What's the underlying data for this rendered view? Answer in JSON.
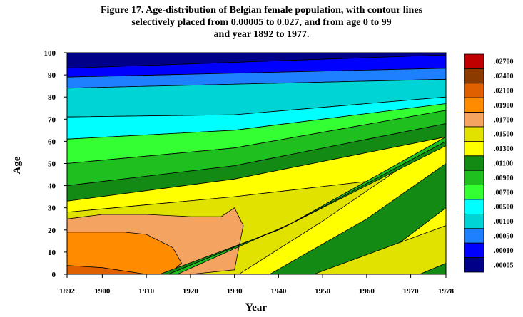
{
  "title_lines": [
    "Figure 17. Age-distribution of Belgian female population, with contour lines",
    "selectively placed from 0.00005 to 0.027, and from age 0 to 99",
    "and year 1892 to 1977."
  ],
  "chart_data": {
    "type": "heatmap",
    "xlabel": "Year",
    "ylabel": "Age",
    "xlim": [
      1892,
      1978
    ],
    "ylim": [
      0,
      100
    ],
    "x_ticks": [
      1892,
      1900,
      1910,
      1920,
      1930,
      1940,
      1950,
      1960,
      1970,
      1978
    ],
    "y_ticks": [
      0,
      10,
      20,
      30,
      40,
      50,
      60,
      70,
      80,
      90,
      100
    ],
    "legend": [
      {
        "label": ".02700",
        "color": "#c00000"
      },
      {
        "label": ".02400",
        "color": "#8b3a00"
      },
      {
        "label": ".02100",
        "color": "#e06000"
      },
      {
        "label": ".01900",
        "color": "#ff8c00"
      },
      {
        "label": ".01700",
        "color": "#f4a460"
      },
      {
        "label": ".01500",
        "color": "#e2e200"
      },
      {
        "label": ".01300",
        "color": "#ffff00"
      },
      {
        "label": ".01100",
        "color": "#138a13"
      },
      {
        "label": ".00900",
        "color": "#1fbf1f"
      },
      {
        "label": ".00700",
        "color": "#33ff33"
      },
      {
        "label": ".00500",
        "color": "#00ffff"
      },
      {
        "label": ".00100",
        "color": "#00d4d4"
      },
      {
        "label": ".00050",
        "color": "#1e7fff"
      },
      {
        "label": ".00010",
        "color": "#0000ff"
      },
      {
        "label": ".00005",
        "color": "#000088"
      }
    ],
    "bands": [
      {
        "level": ".00005",
        "color": "#000088",
        "from": [
          [
            1892,
            93
          ],
          [
            1978,
            99
          ]
        ],
        "to": [
          [
            1892,
            100
          ],
          [
            1978,
            100
          ]
        ]
      },
      {
        "level": ".00010",
        "color": "#0000ff",
        "from": [
          [
            1892,
            89
          ],
          [
            1978,
            93
          ]
        ],
        "to": [
          [
            1892,
            93
          ],
          [
            1978,
            99
          ]
        ]
      },
      {
        "level": ".00050",
        "color": "#1e7fff",
        "from": [
          [
            1892,
            84
          ],
          [
            1978,
            88
          ]
        ],
        "to": [
          [
            1892,
            89
          ],
          [
            1978,
            93
          ]
        ]
      },
      {
        "level": ".00100",
        "color": "#00d4d4",
        "from": [
          [
            1892,
            71
          ],
          [
            1930,
            72
          ],
          [
            1978,
            80
          ]
        ],
        "to": [
          [
            1892,
            84
          ],
          [
            1978,
            88
          ]
        ]
      },
      {
        "level": ".00500",
        "color": "#00ffff",
        "from": [
          [
            1892,
            61
          ],
          [
            1930,
            65
          ],
          [
            1978,
            77
          ]
        ],
        "to": [
          [
            1892,
            71
          ],
          [
            1930,
            72
          ],
          [
            1978,
            80
          ]
        ]
      },
      {
        "level": ".00700",
        "color": "#33ff33",
        "from": [
          [
            1892,
            50
          ],
          [
            1930,
            57
          ],
          [
            1978,
            74
          ]
        ],
        "to": [
          [
            1892,
            61
          ],
          [
            1930,
            65
          ],
          [
            1978,
            77
          ]
        ]
      },
      {
        "level": ".00900",
        "color": "#1fbf1f",
        "from": [
          [
            1892,
            40
          ],
          [
            1930,
            49
          ],
          [
            1978,
            68
          ]
        ],
        "to": [
          [
            1892,
            50
          ],
          [
            1930,
            57
          ],
          [
            1978,
            74
          ]
        ]
      },
      {
        "level": ".01100",
        "color": "#138a13",
        "from": [
          [
            1892,
            33
          ],
          [
            1930,
            43
          ],
          [
            1978,
            62
          ]
        ],
        "to": [
          [
            1892,
            40
          ],
          [
            1930,
            49
          ],
          [
            1978,
            68
          ]
        ]
      },
      {
        "level": ".01300",
        "color": "#ffff00",
        "from": [
          [
            1892,
            28
          ],
          [
            1930,
            35
          ],
          [
            1978,
            46
          ]
        ],
        "to": [
          [
            1892,
            33
          ],
          [
            1930,
            43
          ],
          [
            1978,
            62
          ]
        ]
      },
      {
        "level": ".01500",
        "color": "#e2e200",
        "from": [
          [
            1892,
            0
          ],
          [
            1978,
            0
          ]
        ],
        "to": [
          [
            1892,
            28
          ],
          [
            1930,
            35
          ],
          [
            1978,
            46
          ]
        ]
      },
      {
        "level": ".01700",
        "color": "#f4a460",
        "from": [
          [
            1892,
            0
          ],
          [
            1910,
            0
          ],
          [
            1920,
            0
          ],
          [
            1930,
            2
          ],
          [
            1932,
            22
          ],
          [
            1930,
            30
          ]
        ],
        "to": [
          [
            1892,
            25
          ],
          [
            1900,
            27
          ],
          [
            1910,
            27
          ],
          [
            1920,
            26
          ],
          [
            1927,
            26
          ],
          [
            1930,
            30
          ]
        ]
      },
      {
        "level": ".01900",
        "color": "#ff8c00",
        "from": [
          [
            1892,
            0
          ],
          [
            1905,
            0
          ],
          [
            1915,
            0
          ],
          [
            1918,
            5
          ],
          [
            1916,
            12
          ],
          [
            1910,
            18
          ]
        ],
        "to": [
          [
            1892,
            19
          ],
          [
            1900,
            19
          ],
          [
            1905,
            19
          ],
          [
            1910,
            18
          ]
        ]
      },
      {
        "level": ".02100",
        "color": "#e06000",
        "from": [
          [
            1892,
            0
          ],
          [
            1910,
            0
          ]
        ],
        "to": [
          [
            1892,
            4
          ],
          [
            1900,
            3
          ],
          [
            1910,
            0
          ]
        ]
      },
      {
        "level": ".01300",
        "color": "#ffff00",
        "from": [
          [
            1931,
            0
          ],
          [
            1960,
            0
          ],
          [
            1978,
            0
          ]
        ],
        "to": [
          [
            1931,
            0
          ],
          [
            1950,
            24
          ],
          [
            1978,
            62
          ]
        ]
      },
      {
        "level": ".01100",
        "color": "#138a13",
        "from": [
          [
            1913,
            0
          ],
          [
            1940,
            20
          ],
          [
            1978,
            58
          ]
        ],
        "to": [
          [
            1915,
            0
          ],
          [
            1942,
            22
          ],
          [
            1978,
            62
          ]
        ]
      },
      {
        "level": ".00900",
        "color": "#1fbf1f",
        "from": [
          [
            1915,
            0
          ],
          [
            1942,
            22
          ],
          [
            1978,
            62
          ]
        ],
        "to": [
          [
            1917,
            0
          ],
          [
            1944,
            24
          ],
          [
            1978,
            60
          ]
        ]
      },
      {
        "level": ".01100",
        "color": "#138a13",
        "from": [
          [
            1938,
            0
          ],
          [
            1958,
            0
          ],
          [
            1978,
            30
          ]
        ],
        "to": [
          [
            1938,
            0
          ],
          [
            1960,
            25
          ],
          [
            1978,
            50
          ]
        ]
      },
      {
        "level": ".01500",
        "color": "#e2e200",
        "from": [
          [
            1948,
            0
          ],
          [
            1978,
            0
          ]
        ],
        "to": [
          [
            1948,
            0
          ],
          [
            1978,
            22
          ]
        ]
      },
      {
        "level": ".01100",
        "color": "#138a13",
        "from": [
          [
            1972,
            0
          ],
          [
            1978,
            0
          ]
        ],
        "to": [
          [
            1972,
            0
          ],
          [
            1978,
            5
          ]
        ]
      }
    ]
  }
}
